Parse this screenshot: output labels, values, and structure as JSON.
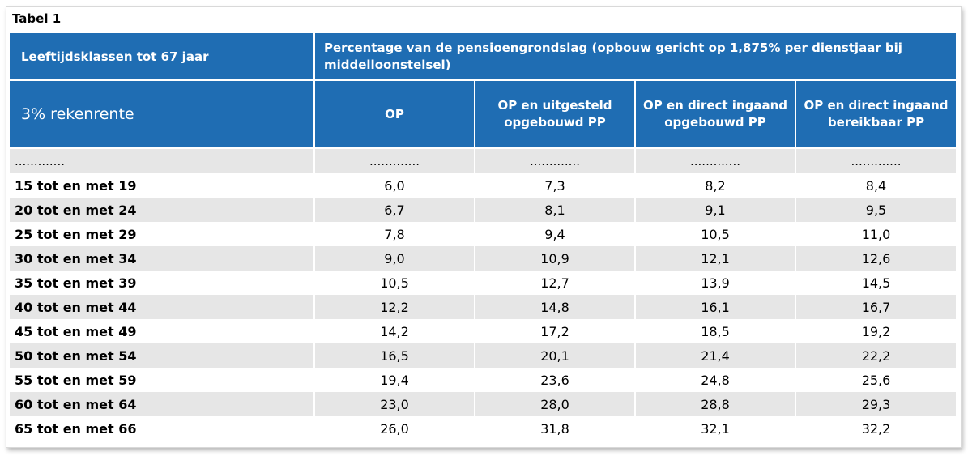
{
  "title": "Tabel 1",
  "header": {
    "col0_top": "Leeftijdsklassen tot 67 jaar",
    "span_top": "Percentage van de pensioengrondslag (opbouw gericht op 1,875% per dienstjaar bij middelloonstelsel)",
    "col0_sub": "3% rekenrente",
    "columns": [
      "OP",
      "OP en uitgesteld opgebouwd PP",
      "OP en direct ingaand opgebouwd PP",
      "OP en direct ingaand bereikbaar PP"
    ]
  },
  "dots": ".............",
  "rows": [
    {
      "label": "15 tot en met 19",
      "values": [
        "6,0",
        "7,3",
        "8,2",
        "8,4"
      ]
    },
    {
      "label": "20 tot en met 24",
      "values": [
        "6,7",
        "8,1",
        "9,1",
        "9,5"
      ]
    },
    {
      "label": "25 tot en met 29",
      "values": [
        "7,8",
        "9,4",
        "10,5",
        "11,0"
      ]
    },
    {
      "label": "30 tot en met 34",
      "values": [
        "9,0",
        "10,9",
        "12,1",
        "12,6"
      ]
    },
    {
      "label": "35 tot en met 39",
      "values": [
        "10,5",
        "12,7",
        "13,9",
        "14,5"
      ]
    },
    {
      "label": "40 tot en met 44",
      "values": [
        "12,2",
        "14,8",
        "16,1",
        "16,7"
      ]
    },
    {
      "label": "45 tot en met 49",
      "values": [
        "14,2",
        "17,2",
        "18,5",
        "19,2"
      ]
    },
    {
      "label": "50 tot en met 54",
      "values": [
        "16,5",
        "20,1",
        "21,4",
        "22,2"
      ]
    },
    {
      "label": "55 tot en met 59",
      "values": [
        "19,4",
        "23,6",
        "24,8",
        "25,6"
      ]
    },
    {
      "label": "60 tot en met 64",
      "values": [
        "23,0",
        "28,0",
        "28,8",
        "29,3"
      ]
    },
    {
      "label": "65 tot en met 66",
      "values": [
        "26,0",
        "31,8",
        "32,1",
        "32,2"
      ]
    }
  ],
  "colors": {
    "header_bg": "#1f6db3",
    "stripe": "#e6e6e6"
  }
}
